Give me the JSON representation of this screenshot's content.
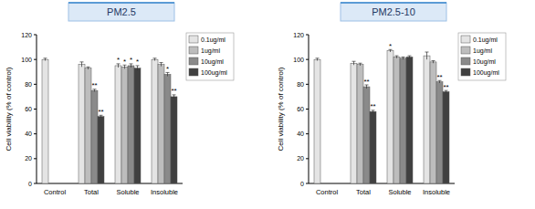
{
  "chart_data": [
    {
      "type": "bar",
      "title": "PM2.5",
      "y_label": "Cell viability (% of control)",
      "categories": [
        "Control",
        "Total",
        "Soluble",
        "Insoluble"
      ],
      "ylim": [
        0,
        120
      ],
      "yticks": [
        0,
        20,
        40,
        60,
        80,
        100,
        120
      ],
      "grid": false,
      "legend": "top-right",
      "series": [
        {
          "name": "0.1ug/ml",
          "color": "#e4e4e4",
          "values": [
            100,
            96,
            95,
            100
          ],
          "errors": [
            1,
            2,
            1.5,
            1
          ],
          "significance": [
            null,
            null,
            "*",
            null
          ]
        },
        {
          "name": "1ug/ml",
          "color": "#bdbdbd",
          "values": [
            null,
            93,
            94,
            96
          ],
          "errors": [
            null,
            1,
            1.5,
            1.5
          ],
          "significance": [
            null,
            null,
            "*",
            null
          ]
        },
        {
          "name": "10ug/ml",
          "color": "#8a8a8a",
          "values": [
            null,
            75,
            95,
            88
          ],
          "errors": [
            null,
            1,
            1.5,
            1.5
          ],
          "significance": [
            null,
            "**",
            "*",
            "*"
          ]
        },
        {
          "name": "100ug/ml",
          "color": "#404040",
          "values": [
            null,
            54,
            93,
            70
          ],
          "errors": [
            null,
            1,
            2,
            1.5
          ],
          "significance": [
            null,
            "**",
            "*",
            "**"
          ]
        }
      ]
    },
    {
      "type": "bar",
      "title": "PM2.5-10",
      "y_label": "Cell viability (% of control)",
      "categories": [
        "Control",
        "Total",
        "Soluble",
        "Insoluble"
      ],
      "ylim": [
        0,
        120
      ],
      "yticks": [
        0,
        20,
        40,
        60,
        80,
        100,
        120
      ],
      "grid": false,
      "legend": "top-right",
      "series": [
        {
          "name": "0.1ug/ml",
          "color": "#e4e4e4",
          "values": [
            100,
            97,
            107,
            103
          ],
          "errors": [
            1,
            1.5,
            1,
            3
          ],
          "significance": [
            null,
            null,
            "*",
            null
          ]
        },
        {
          "name": "1ug/ml",
          "color": "#bdbdbd",
          "values": [
            null,
            96,
            102,
            98
          ],
          "errors": [
            null,
            1,
            1,
            1
          ],
          "significance": [
            null,
            null,
            null,
            null
          ]
        },
        {
          "name": "10ug/ml",
          "color": "#8a8a8a",
          "values": [
            null,
            78,
            101,
            82
          ],
          "errors": [
            null,
            1.5,
            1,
            1
          ],
          "significance": [
            null,
            "**",
            null,
            "**"
          ]
        },
        {
          "name": "100ug/ml",
          "color": "#404040",
          "values": [
            null,
            58,
            102,
            74
          ],
          "errors": [
            null,
            1,
            1,
            1
          ],
          "significance": [
            null,
            "**",
            null,
            "**"
          ]
        }
      ]
    }
  ]
}
